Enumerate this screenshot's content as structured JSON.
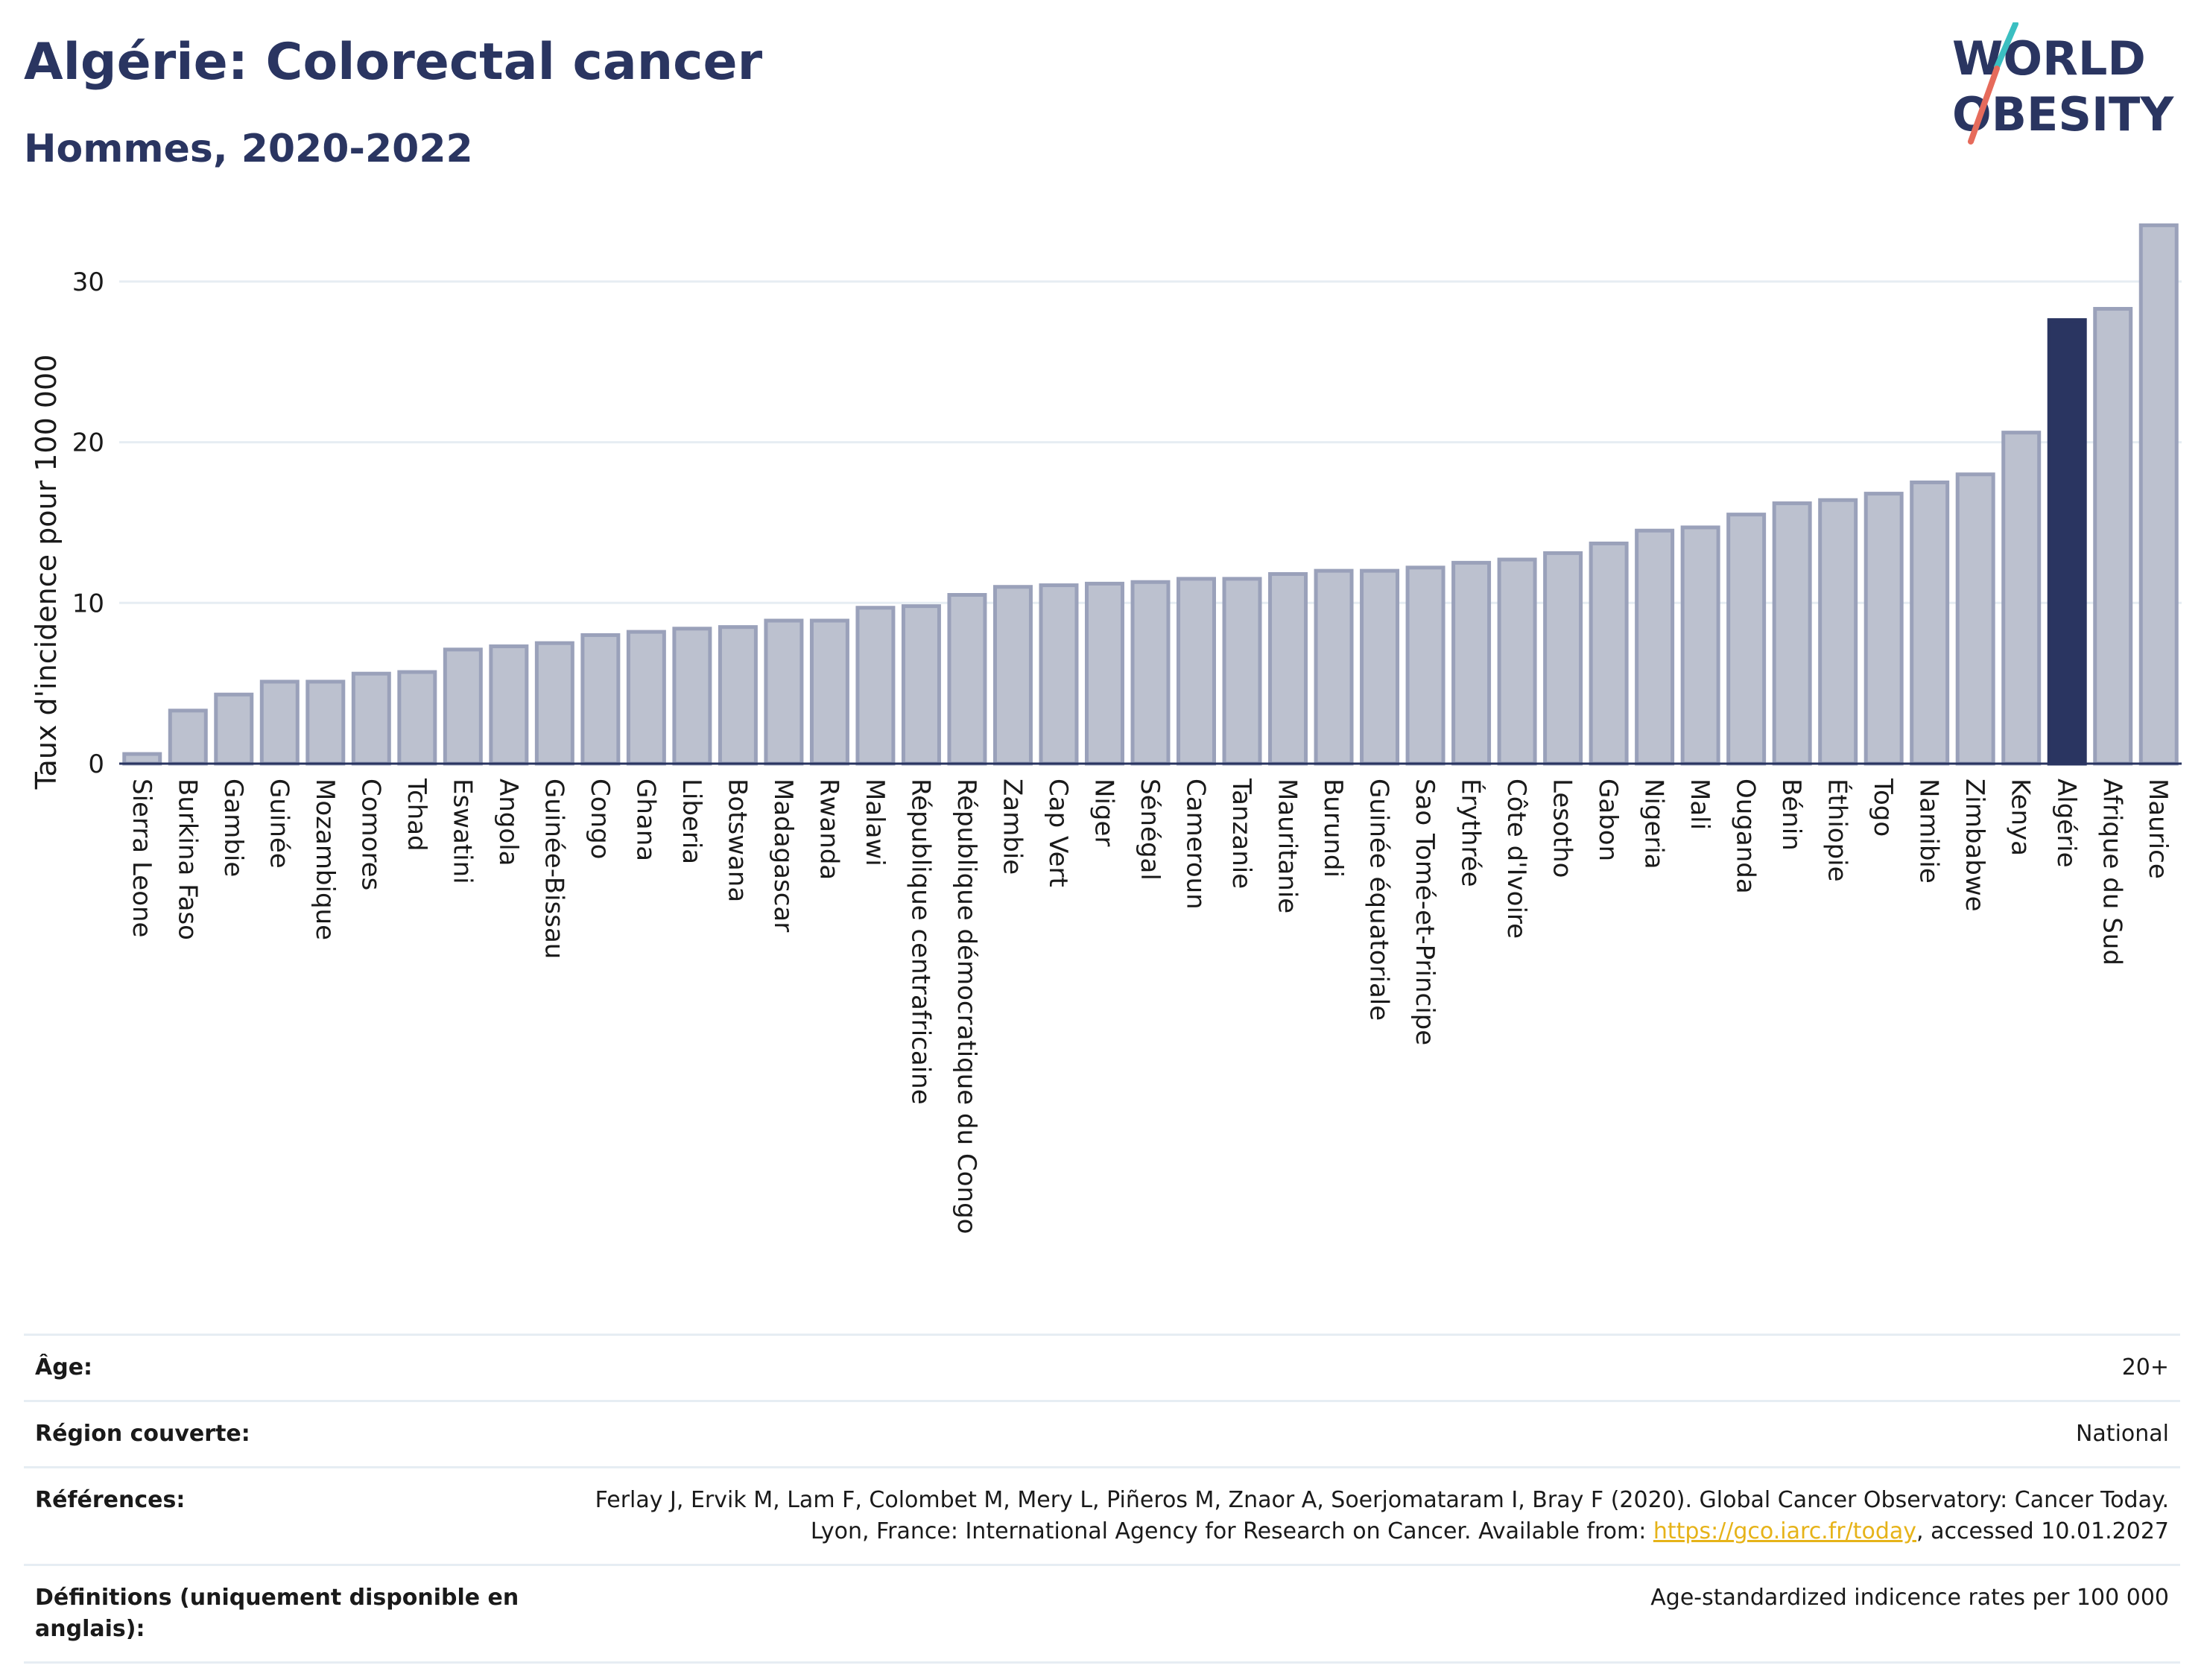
{
  "header": {
    "title": "Algérie: Colorectal cancer",
    "subtitle": "Hommes, 2020-2022"
  },
  "logo": {
    "line1": "WORLD",
    "line2": "OBESITY",
    "text_color": "#2a3561",
    "slash_colors": [
      "#3bbfc1",
      "#e66b5b"
    ]
  },
  "colors": {
    "bar": "#bcc1cf",
    "bar_edge": "#9aa1ba",
    "highlight": "#2a3561",
    "grid": "#e6edf3",
    "axis": "#2a3561"
  },
  "chart_data": {
    "type": "bar",
    "ylabel": "Taux d'incidence pour 100 000",
    "ylim": [
      0,
      35
    ],
    "yticks": [
      0,
      10,
      20,
      30
    ],
    "highlight": "Algérie",
    "categories": [
      "Sierra Leone",
      "Burkina Faso",
      "Gambie",
      "Guinée",
      "Mozambique",
      "Comores",
      "Tchad",
      "Eswatini",
      "Angola",
      "Guinée-Bissau",
      "Congo",
      "Ghana",
      "Liberia",
      "Botswana",
      "Madagascar",
      "Rwanda",
      "Malawi",
      "République centrafricaine",
      "République démocratique du Congo",
      "Zambie",
      "Cap Vert",
      "Niger",
      "Sénégal",
      "Cameroun",
      "Tanzanie",
      "Mauritanie",
      "Burundi",
      "Guinée équatoriale",
      "Sao Tomé-et-Principe",
      "Érythrée",
      "Côte d'Ivoire",
      "Lesotho",
      "Gabon",
      "Nigeria",
      "Mali",
      "Ouganda",
      "Bénin",
      "Éthiopie",
      "Togo",
      "Namibie",
      "Zimbabwe",
      "Kenya",
      "Algérie",
      "Afrique du Sud",
      "Maurice"
    ],
    "values": [
      0.6,
      3.3,
      4.3,
      5.1,
      5.1,
      5.6,
      5.7,
      7.1,
      7.3,
      7.5,
      8.0,
      8.2,
      8.4,
      8.5,
      8.9,
      8.9,
      9.7,
      9.8,
      10.5,
      11.0,
      11.1,
      11.2,
      11.3,
      11.5,
      11.5,
      11.8,
      12.0,
      12.0,
      12.2,
      12.5,
      12.7,
      13.1,
      13.7,
      14.5,
      14.7,
      15.5,
      16.2,
      16.4,
      16.8,
      17.5,
      18.0,
      20.6,
      27.6,
      28.3,
      33.5
    ]
  },
  "footer": {
    "rows": [
      {
        "label": "Âge:",
        "value": "20+"
      },
      {
        "label": "Région couverte:",
        "value": "National"
      },
      {
        "label": "Références:",
        "value_pre": "Ferlay J, Ervik M, Lam F, Colombet M, Mery L, Piñeros M, Znaor A, Soerjomataram I, Bray F (2020). Global Cancer Observatory: Cancer Today. Lyon, France: International Agency for Research on Cancer. Available from: ",
        "link": "https://gco.iarc.fr/today",
        "value_post": ", accessed 10.01.2027"
      },
      {
        "label": "Définitions (uniquement disponible en anglais):",
        "value": "Age-standardized indicence rates per 100 000"
      }
    ]
  }
}
